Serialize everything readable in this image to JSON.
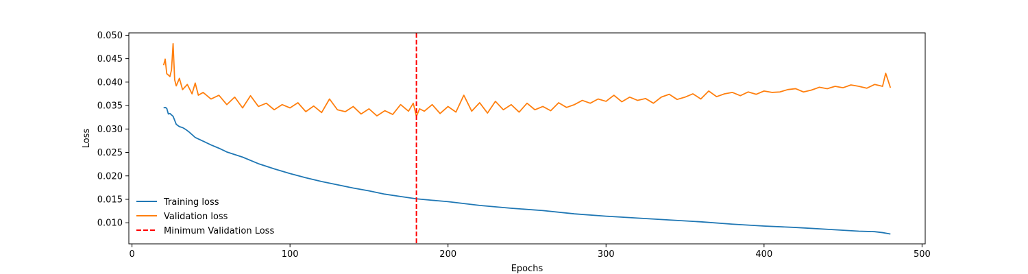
{
  "chart_data": {
    "type": "line",
    "title": "",
    "xlabel": "Epochs",
    "ylabel": "Loss",
    "xlim": [
      -2,
      502
    ],
    "ylim": [
      0.0055,
      0.0505
    ],
    "x_ticks": [
      0,
      100,
      200,
      300,
      400,
      500
    ],
    "x_tick_labels": [
      "0",
      "100",
      "200",
      "300",
      "400",
      "500"
    ],
    "y_ticks": [
      0.01,
      0.015,
      0.02,
      0.025,
      0.03,
      0.035,
      0.04,
      0.045,
      0.05
    ],
    "y_tick_labels": [
      "0.010",
      "0.015",
      "0.020",
      "0.025",
      "0.030",
      "0.035",
      "0.040",
      "0.045",
      "0.050"
    ],
    "grid": false,
    "legend_position": "lower-left",
    "series": [
      {
        "name": "Training loss",
        "color": "#1f77b4",
        "style": "solid",
        "x": [
          20,
          21,
          22,
          23,
          24,
          26,
          28,
          30,
          32,
          34,
          36,
          40,
          45,
          50,
          55,
          60,
          70,
          80,
          90,
          100,
          110,
          120,
          130,
          140,
          150,
          160,
          170,
          180,
          190,
          200,
          220,
          240,
          260,
          280,
          300,
          320,
          340,
          360,
          380,
          400,
          420,
          440,
          460,
          470,
          475,
          480
        ],
        "y": [
          0.0345,
          0.0346,
          0.0344,
          0.0332,
          0.0333,
          0.0327,
          0.031,
          0.0305,
          0.0303,
          0.0299,
          0.0294,
          0.0282,
          0.0274,
          0.0266,
          0.0259,
          0.0251,
          0.024,
          0.0226,
          0.0215,
          0.0205,
          0.0196,
          0.0188,
          0.0181,
          0.0174,
          0.0168,
          0.0161,
          0.0156,
          0.0151,
          0.0148,
          0.0145,
          0.0137,
          0.0131,
          0.0126,
          0.0119,
          0.0114,
          0.011,
          0.0106,
          0.0102,
          0.0097,
          0.0093,
          0.009,
          0.0086,
          0.0082,
          0.0081,
          0.0079,
          0.0076
        ]
      },
      {
        "name": "Validation loss",
        "color": "#ff7f0e",
        "style": "solid",
        "x": [
          20,
          21,
          22,
          23,
          24,
          25,
          26,
          27,
          28,
          30,
          32,
          35,
          38,
          40,
          42,
          45,
          50,
          55,
          60,
          65,
          70,
          75,
          80,
          85,
          90,
          95,
          100,
          105,
          110,
          115,
          120,
          125,
          130,
          135,
          140,
          145,
          150,
          155,
          160,
          165,
          170,
          175,
          178,
          180,
          182,
          185,
          190,
          195,
          200,
          205,
          210,
          215,
          220,
          225,
          230,
          235,
          240,
          245,
          250,
          255,
          260,
          265,
          270,
          275,
          280,
          285,
          290,
          295,
          300,
          305,
          310,
          315,
          320,
          325,
          330,
          335,
          340,
          345,
          350,
          355,
          360,
          365,
          370,
          375,
          380,
          385,
          390,
          395,
          400,
          405,
          410,
          415,
          420,
          425,
          430,
          435,
          440,
          445,
          450,
          455,
          460,
          465,
          470,
          475,
          477,
          480
        ],
        "y": [
          0.0436,
          0.0449,
          0.0418,
          0.0415,
          0.0412,
          0.0426,
          0.0482,
          0.0405,
          0.0392,
          0.0408,
          0.0384,
          0.0395,
          0.0375,
          0.0398,
          0.0372,
          0.0378,
          0.0364,
          0.0372,
          0.0352,
          0.0368,
          0.0345,
          0.0371,
          0.0348,
          0.0355,
          0.0341,
          0.0352,
          0.0345,
          0.0356,
          0.0337,
          0.0349,
          0.0335,
          0.0364,
          0.0341,
          0.0337,
          0.0348,
          0.0332,
          0.0343,
          0.0328,
          0.0339,
          0.0331,
          0.0352,
          0.0338,
          0.0355,
          0.0327,
          0.0343,
          0.0338,
          0.0352,
          0.0333,
          0.0348,
          0.0336,
          0.0372,
          0.0338,
          0.0356,
          0.0334,
          0.0359,
          0.0341,
          0.0352,
          0.0336,
          0.0355,
          0.0341,
          0.0348,
          0.0339,
          0.0356,
          0.0346,
          0.0352,
          0.0361,
          0.0355,
          0.0364,
          0.0359,
          0.0372,
          0.0358,
          0.0368,
          0.0361,
          0.0365,
          0.0355,
          0.0368,
          0.0374,
          0.0363,
          0.0368,
          0.0375,
          0.0364,
          0.0381,
          0.0369,
          0.0375,
          0.0378,
          0.0371,
          0.0379,
          0.0374,
          0.0381,
          0.0378,
          0.0379,
          0.0384,
          0.0386,
          0.0379,
          0.0383,
          0.0389,
          0.0386,
          0.0391,
          0.0388,
          0.0394,
          0.0391,
          0.0387,
          0.0395,
          0.0391,
          0.0419,
          0.0388
        ]
      },
      {
        "name": "Minimum Validation Loss",
        "color": "#ff0000",
        "style": "dashed",
        "vline_x": 180
      }
    ]
  }
}
